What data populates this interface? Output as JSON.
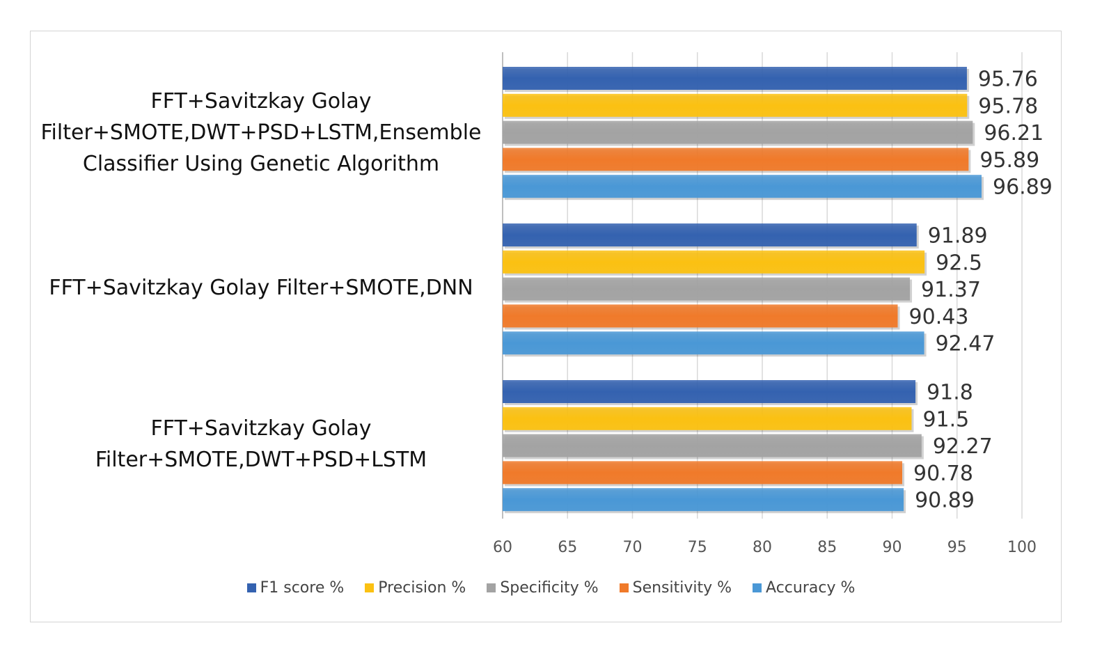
{
  "chart_data": {
    "type": "bar",
    "orientation": "horizontal",
    "categories": [
      "FFT+Savitzkay Golay Filter+SMOTE,DWT+PSD+LSTM,Ensemble Classifier Using Genetic Algorithm",
      "FFT+Savitzkay Golay Filter+SMOTE,DNN",
      "FFT+Savitzkay Golay Filter+SMOTE,DWT+PSD+LSTM"
    ],
    "category_lines": [
      [
        "FFT+Savitzkay Golay",
        "Filter+SMOTE,DWT+PSD+LSTM,Ensemble",
        "Classifier Using Genetic Algorithm"
      ],
      [
        "FFT+Savitzkay Golay Filter+SMOTE,DNN"
      ],
      [
        "FFT+Savitzkay Golay",
        "Filter+SMOTE,DWT+PSD+LSTM"
      ]
    ],
    "series": [
      {
        "name": "F1 score %",
        "color": "#3462b0",
        "values": [
          95.76,
          91.89,
          91.8
        ]
      },
      {
        "name": "Precision %",
        "color": "#fbc112",
        "values": [
          95.78,
          92.5,
          91.5
        ]
      },
      {
        "name": "Specificity %",
        "color": "#a3a3a3",
        "values": [
          96.21,
          91.37,
          92.27
        ]
      },
      {
        "name": "Sensitivity %",
        "color": "#f07a2a",
        "values": [
          95.89,
          90.43,
          90.78
        ]
      },
      {
        "name": "Accuracy %",
        "color": "#4a98d6",
        "values": [
          96.89,
          92.47,
          90.89
        ]
      }
    ],
    "xlim": [
      60,
      100
    ],
    "xticks": [
      "60",
      "65",
      "70",
      "75",
      "80",
      "85",
      "90",
      "95",
      "100"
    ],
    "grid": true,
    "legend": "bottom",
    "title": "",
    "xlabel": "",
    "ylabel": ""
  }
}
